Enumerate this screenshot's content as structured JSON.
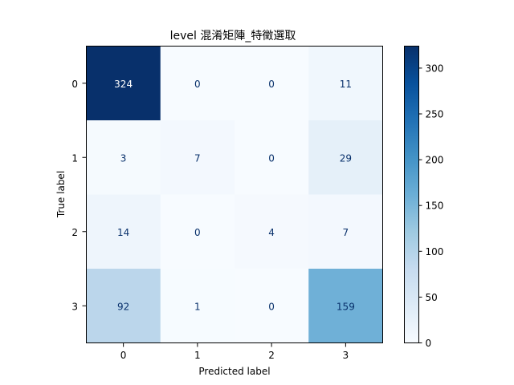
{
  "chart_data": {
    "type": "heatmap",
    "title": "level 混淆矩陣_特徵選取",
    "xlabel": "Predicted label",
    "ylabel": "True label",
    "x_categories": [
      "0",
      "1",
      "2",
      "3"
    ],
    "y_categories": [
      "0",
      "1",
      "2",
      "3"
    ],
    "values": [
      [
        324,
        0,
        0,
        11
      ],
      [
        3,
        7,
        0,
        29
      ],
      [
        14,
        0,
        4,
        7
      ],
      [
        92,
        1,
        0,
        159
      ]
    ],
    "colormap": "Blues",
    "colorbar": {
      "min": 0,
      "max": 324,
      "ticks": [
        "0",
        "50",
        "100",
        "150",
        "200",
        "250",
        "300"
      ]
    }
  }
}
